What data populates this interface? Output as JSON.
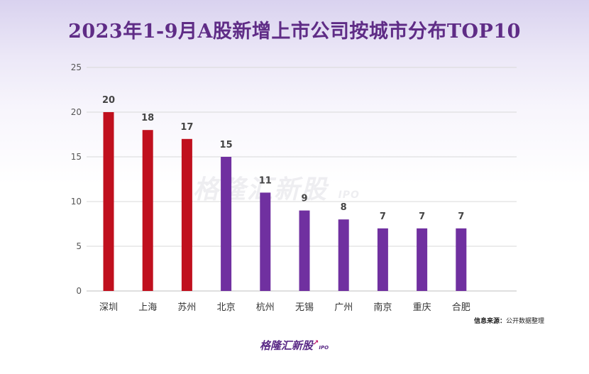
{
  "title": "2023年1-9月A股新增上市公司按城市分布TOP10",
  "source": {
    "key": "信息来源：",
    "value": "公开数据整理"
  },
  "watermark": {
    "brand": "格隆汇新股",
    "ipo": "IPO"
  },
  "footer_logo": {
    "brand": "格隆汇新股",
    "ipo": "IPO"
  },
  "colors": {
    "red": "#c0101e",
    "purple": "#7030a0",
    "title": "#5f2c86",
    "grid": "#d9d9d9"
  },
  "chart_data": {
    "type": "bar",
    "title": "2023年1-9月A股新增上市公司按城市分布TOP10",
    "xlabel": "",
    "ylabel": "",
    "categories": [
      "深圳",
      "上海",
      "苏州",
      "北京",
      "杭州",
      "无锡",
      "广州",
      "南京",
      "重庆",
      "合肥"
    ],
    "values": [
      20,
      18,
      17,
      15,
      11,
      9,
      8,
      7,
      7,
      7
    ],
    "bar_colors": [
      "#c0101e",
      "#c0101e",
      "#c0101e",
      "#7030a0",
      "#7030a0",
      "#7030a0",
      "#7030a0",
      "#7030a0",
      "#7030a0",
      "#7030a0"
    ],
    "ylim": [
      0,
      25
    ],
    "yticks": [
      0,
      5,
      10,
      15,
      20,
      25
    ],
    "grid": true,
    "data_labels": true,
    "legend": "none"
  }
}
